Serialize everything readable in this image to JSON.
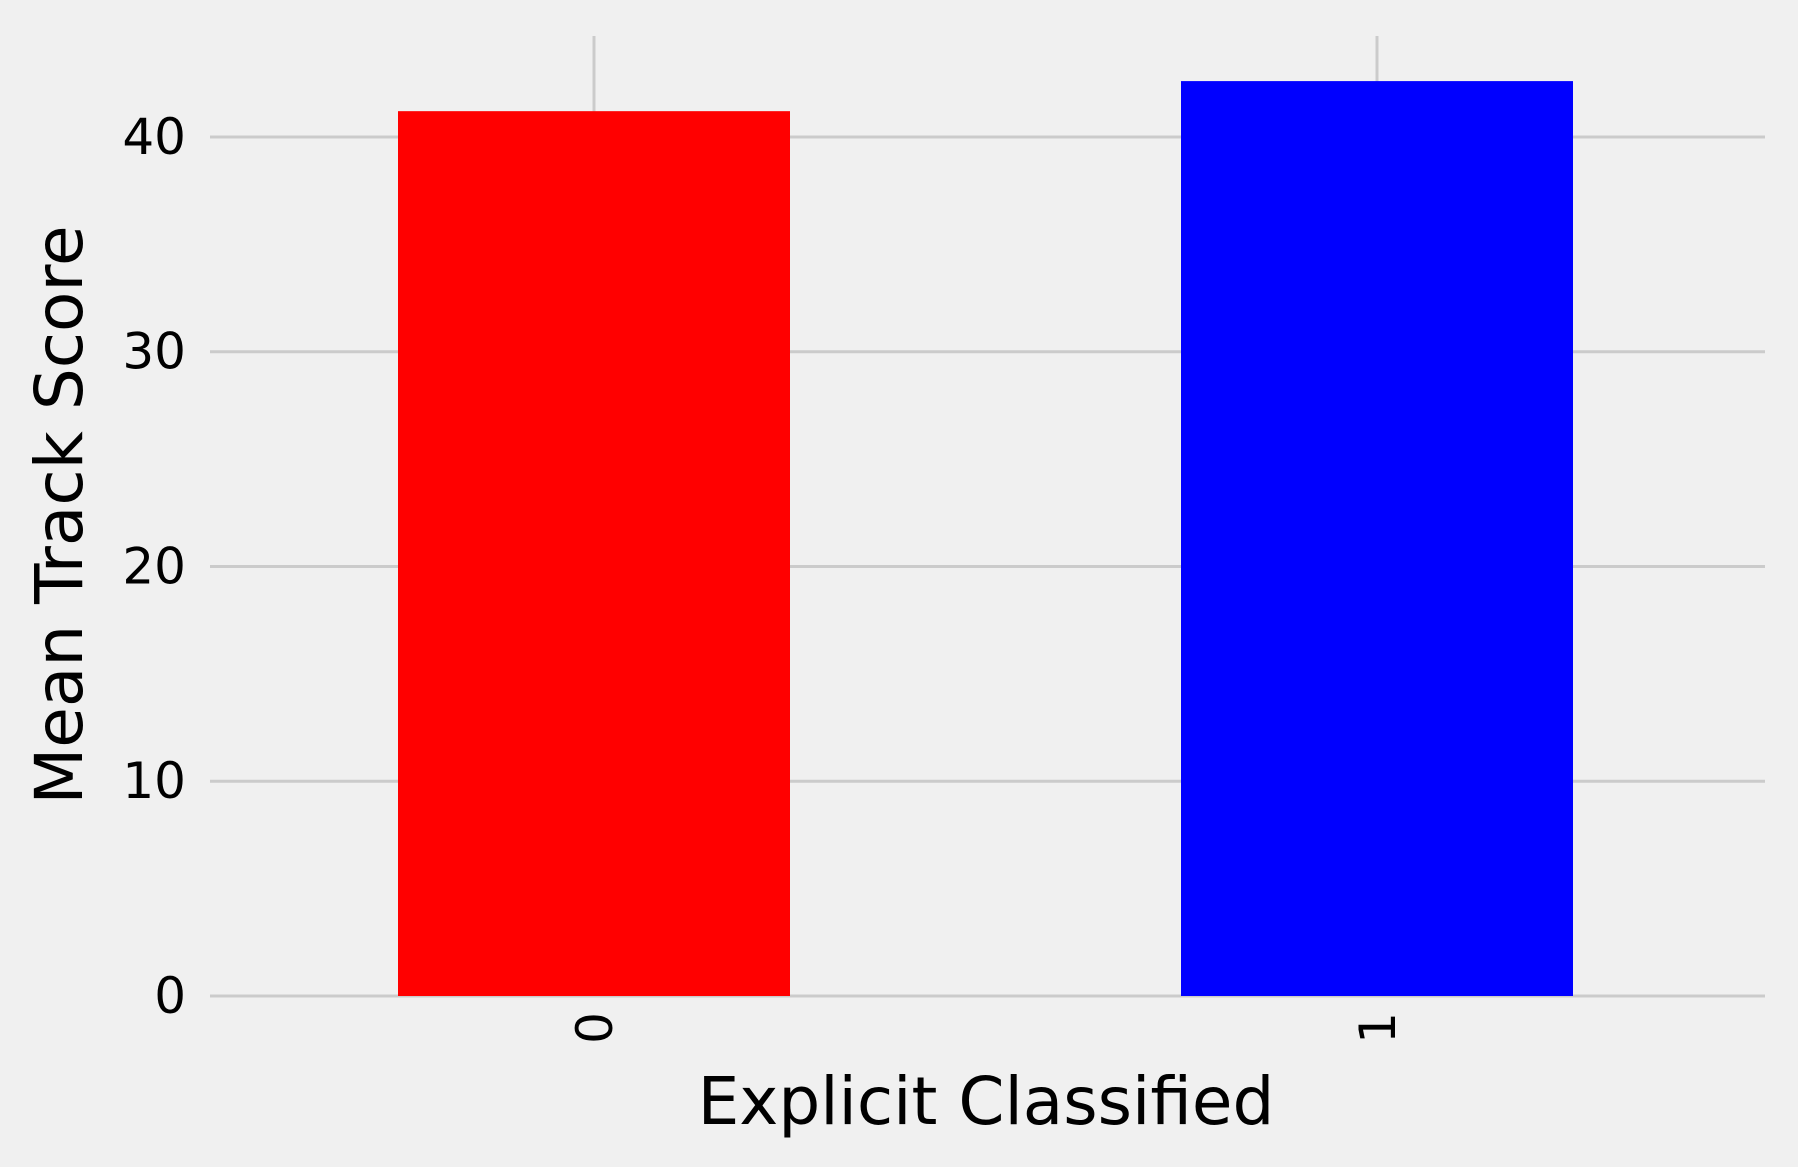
{
  "chart_data": {
    "type": "bar",
    "categories": [
      "0",
      "1"
    ],
    "values": [
      41.2,
      42.6
    ],
    "xlabel": "Explicit Classified",
    "ylabel": "Mean Track Score",
    "ylim": [
      0,
      44.7
    ],
    "yticks": [
      0,
      10,
      20,
      30,
      40
    ],
    "grid": true,
    "legend": "none",
    "bar_colors": [
      "#ff0000",
      "#0000ff"
    ],
    "background_color": "#f0f0f0",
    "grid_color": "#cbcbcb"
  }
}
